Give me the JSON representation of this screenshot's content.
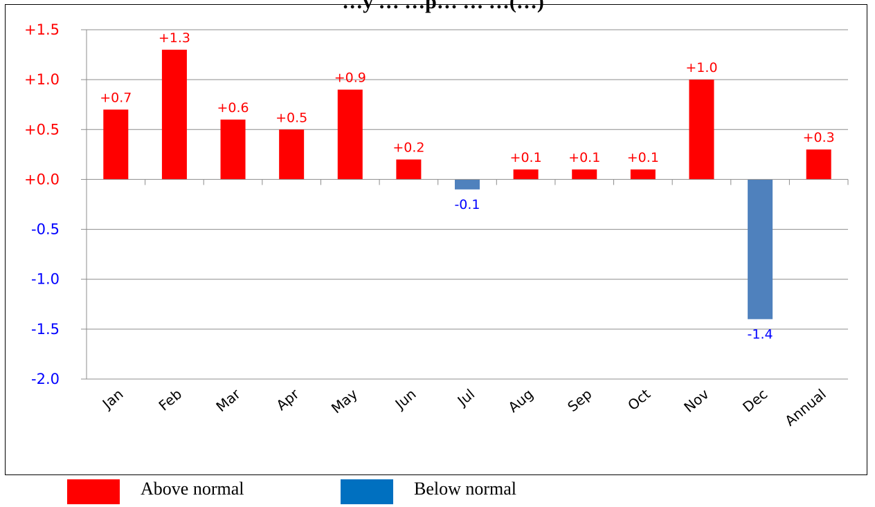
{
  "chart_data": {
    "type": "bar",
    "title": "…y … …p… … …(…)",
    "categories": [
      "Jan",
      "Feb",
      "Mar",
      "Apr",
      "May",
      "Jun",
      "Jul",
      "Aug",
      "Sep",
      "Oct",
      "Nov",
      "Dec",
      "Annual"
    ],
    "values": [
      0.7,
      1.3,
      0.6,
      0.5,
      0.9,
      0.2,
      -0.1,
      0.1,
      0.1,
      0.1,
      1.0,
      -1.4,
      0.3
    ],
    "data_labels": [
      "+0.7",
      "+1.3",
      "+0.6",
      "+0.5",
      "+0.9",
      "+0.2",
      "-0.1",
      "+0.1",
      "+0.1",
      "+0.1",
      "+1.0",
      "-1.4",
      "+0.3"
    ],
    "yticks": [
      1.5,
      1.0,
      0.5,
      0.0,
      -0.5,
      -1.0,
      -1.5,
      -2.0
    ],
    "ytick_labels": [
      "+1.5",
      "+1.0",
      "+0.5",
      "+0.0",
      "-0.5",
      "-1.0",
      "-1.5",
      "-2.0"
    ],
    "ylim": [
      -2.0,
      1.5
    ],
    "grid": true,
    "colors": {
      "positive": "#ff0000",
      "negative": "#4f81bd",
      "positive_text": "#ff0000",
      "negative_text": "#0000ff"
    },
    "legend_position": "bottom-left"
  },
  "legend": {
    "items": [
      {
        "label": "Above normal",
        "color": "#ff0000"
      },
      {
        "label": "Below normal",
        "color": "#0070c0"
      }
    ]
  }
}
